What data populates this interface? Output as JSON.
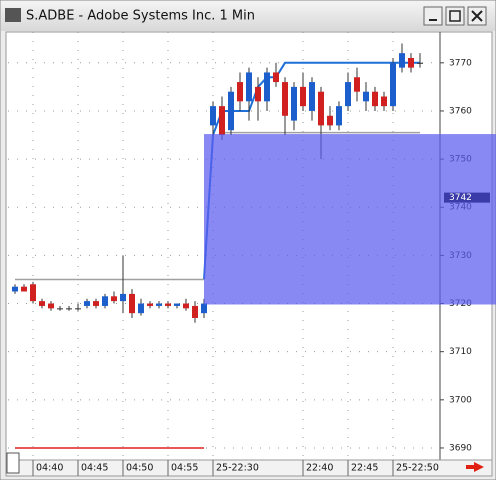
{
  "window": {
    "title": "S.ADBE - Adobe Systems Inc. 1 Min"
  },
  "chart_data": {
    "type": "candlestick",
    "categories": [
      null,
      null,
      "04:40",
      null,
      null,
      null,
      null,
      "04:45",
      null,
      null,
      null,
      null,
      "04:50",
      null,
      null,
      null,
      null,
      "04:55",
      null,
      null,
      null,
      null,
      "25-22:30",
      null,
      null,
      null,
      null,
      null,
      null,
      null,
      null,
      null,
      "22:40",
      null,
      null,
      null,
      null,
      "22:45",
      null,
      null,
      null,
      null,
      "25-22:50",
      null,
      null,
      null
    ],
    "open": [
      3722.5,
      3723.5,
      3724,
      3720.5,
      3720,
      3719,
      3719,
      3719,
      3719.5,
      3720.5,
      3719.5,
      3721.5,
      3720.5,
      3722,
      3718,
      3720,
      3719.5,
      3720,
      3719.5,
      3720,
      3719.5,
      3718,
      3757,
      3761,
      3756,
      3766,
      3762,
      3765,
      3762,
      3768,
      3766,
      3758,
      3765,
      3760,
      3764,
      3759,
      3757,
      3761,
      3767,
      3762,
      3764,
      3763,
      3761,
      3769,
      3771,
      3770
    ],
    "high": [
      3724,
      3724,
      3724.5,
      3721,
      3720.5,
      3719.5,
      3719.5,
      3720,
      3721,
      3721,
      3722,
      3722.5,
      3730,
      3723,
      3721,
      3720.5,
      3720.5,
      3720.5,
      3720,
      3721,
      3720.5,
      3721,
      3762,
      3763,
      3765,
      3768,
      3769,
      3767,
      3769,
      3770,
      3767,
      3766,
      3768,
      3767,
      3765,
      3761,
      3762,
      3768,
      3769,
      3766,
      3765,
      3764,
      3771,
      3774,
      3772,
      3772
    ],
    "low": [
      3722,
      3722.5,
      3720,
      3719,
      3718.5,
      3718.5,
      3718.5,
      3718.5,
      3719,
      3719,
      3719,
      3720,
      3718,
      3717,
      3717.5,
      3719,
      3719,
      3719,
      3719,
      3718.5,
      3716,
      3717,
      3755,
      3754,
      3755,
      3760,
      3758,
      3758,
      3760,
      3765,
      3755,
      3756,
      3760,
      3758,
      3750,
      3756,
      3756,
      3760,
      3762,
      3760,
      3760,
      3760,
      3760,
      3768,
      3768,
      3769
    ],
    "close": [
      3723.5,
      3722.5,
      3720.5,
      3719.5,
      3719,
      3719,
      3719,
      3719,
      3720.5,
      3719.5,
      3721.5,
      3720.5,
      3722,
      3718,
      3720,
      3719.5,
      3720,
      3719.5,
      3720,
      3719,
      3717,
      3720,
      3761,
      3755,
      3764,
      3762,
      3768,
      3762,
      3768,
      3766,
      3759,
      3765,
      3761,
      3766,
      3757,
      3757,
      3761,
      3766,
      3764,
      3764,
      3761,
      3761,
      3770,
      3772,
      3769,
      3770
    ],
    "up_color": "#1c5fcc",
    "down_color": "#d02020",
    "lines": [
      {
        "color": "#1e6fd8",
        "values": [
          null,
          null,
          null,
          null,
          null,
          null,
          null,
          null,
          null,
          null,
          null,
          null,
          null,
          null,
          null,
          null,
          null,
          null,
          null,
          null,
          null,
          3725,
          3755,
          3760,
          3760,
          3760,
          3760,
          3765,
          3767,
          3767,
          3770,
          3770,
          3770,
          3770,
          3770,
          3770,
          3770,
          3770,
          3770,
          3770,
          3770,
          3770,
          3770,
          3770,
          3770,
          3770
        ]
      },
      {
        "color": "#a0a0a0",
        "values": [
          3725,
          3725,
          3725,
          3725,
          3725,
          3725,
          3725,
          3725,
          3725,
          3725,
          3725,
          3725,
          3725,
          3725,
          3725,
          3725,
          3725,
          3725,
          3725,
          3725,
          3725,
          3725,
          null,
          3755.5,
          3755.5,
          3755.5,
          3755.5,
          3755.5,
          3755.5,
          3755.5,
          3755.5,
          3755.5,
          3755.5,
          3755.5,
          3755.5,
          3755.5,
          3755.5,
          3755.5,
          3755.5,
          3755.5,
          3755.5,
          3755.5,
          3755.5,
          3755.5,
          3755.5,
          3755.5
        ]
      },
      {
        "color": "#e02020",
        "values": [
          3690,
          3690,
          3690,
          3690,
          3690,
          3690,
          3690,
          3690,
          3690,
          3690,
          3690,
          3690,
          3690,
          3690,
          3690,
          3690,
          3690,
          3690,
          3690,
          3690,
          3690,
          3690,
          null,
          null,
          null,
          null,
          null,
          null,
          null,
          null,
          null,
          null,
          null,
          null,
          null,
          null,
          null,
          null,
          null,
          null,
          null,
          null,
          null,
          null,
          null,
          null
        ]
      }
    ],
    "zone": {
      "values": [
        3719.8,
        3755.2
      ],
      "color": "#5c5cf0"
    },
    "last_price": 3742,
    "ylim": [
      3687.5,
      3776.4
    ],
    "yticks": [
      3690,
      3700,
      3710,
      3720,
      3730,
      3740,
      3750,
      3760,
      3770
    ],
    "grid": true
  }
}
